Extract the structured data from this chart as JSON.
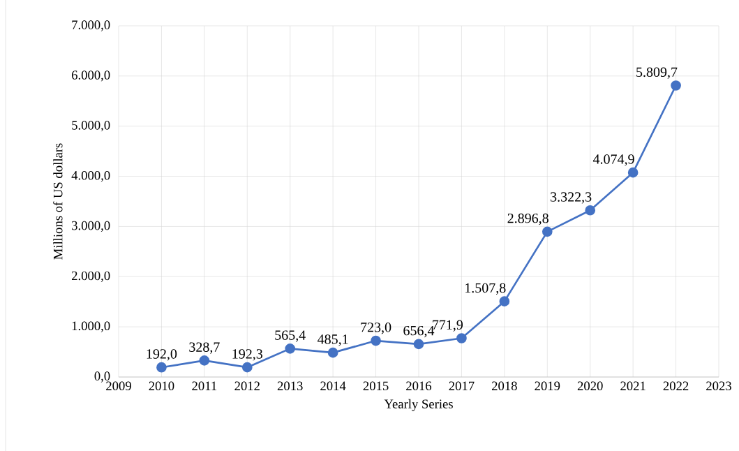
{
  "chart_data": {
    "type": "line",
    "xlabel": "Yearly Series",
    "ylabel": "Millions of US dollars",
    "x": [
      2010,
      2011,
      2012,
      2013,
      2014,
      2015,
      2016,
      2017,
      2018,
      2019,
      2020,
      2021,
      2022
    ],
    "series": [
      {
        "color": "#4472c4",
        "values": [
          192.0,
          328.7,
          192.3,
          565.4,
          485.1,
          723.0,
          656.4,
          771.9,
          1507.8,
          2896.8,
          3322.3,
          4074.9,
          5809.7
        ],
        "value_labels": [
          "192,0",
          "328,7",
          "192,3",
          "565,4",
          "485,1",
          "723,0",
          "656,4",
          "771,9",
          "1.507,8",
          "2.896,8",
          "3.322,3",
          "4.074,9",
          "5.809,7"
        ]
      }
    ],
    "xlim": [
      2009,
      2023
    ],
    "xticks": [
      2009,
      2010,
      2011,
      2012,
      2013,
      2014,
      2015,
      2016,
      2017,
      2018,
      2019,
      2020,
      2021,
      2022,
      2023
    ],
    "ylim": [
      0,
      7000
    ],
    "yticks": [
      {
        "value": 0,
        "label": "0,0"
      },
      {
        "value": 1000,
        "label": "1.000,0"
      },
      {
        "value": 2000,
        "label": "2.000,0"
      },
      {
        "value": 3000,
        "label": "3.000,0"
      },
      {
        "value": 4000,
        "label": "4.000,0"
      },
      {
        "value": 5000,
        "label": "5.000,0"
      },
      {
        "value": 6000,
        "label": "6.000,0"
      },
      {
        "value": 7000,
        "label": "7.000,0"
      }
    ],
    "grid": true,
    "marker": "circle",
    "line_style": "solid"
  }
}
